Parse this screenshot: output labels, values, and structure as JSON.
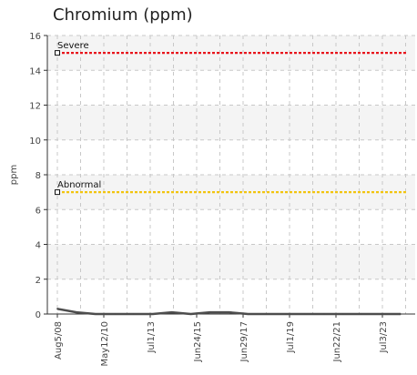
{
  "chart_data": {
    "type": "line",
    "title": "Chromium (ppm)",
    "ylabel": "ppm",
    "xlabel": "",
    "ylim": [
      0,
      16
    ],
    "yticks": [
      0,
      2,
      4,
      6,
      8,
      10,
      12,
      14,
      16
    ],
    "grid": true,
    "x_tick_labels": [
      "Aug5/08",
      "May12/10",
      "Jul1/13",
      "Jun24/15",
      "Jun29/17",
      "Jul1/19",
      "Jun22/21",
      "Jul3/23"
    ],
    "series": [
      {
        "values": [
          0.3,
          0.1,
          0,
          0,
          0,
          0,
          0.1,
          0,
          0.1,
          0.1,
          0,
          0,
          0,
          0,
          0,
          0,
          0,
          0,
          0
        ]
      }
    ],
    "reference_lines": [
      {
        "label": "Severe",
        "value": 15,
        "color": "#e8141c"
      },
      {
        "label": "Abnormal",
        "value": 7,
        "color": "#f2c40f"
      }
    ],
    "colors": {
      "series": "#4d4d4d",
      "band": "#f4f4f4",
      "grid": "#c8c8c8",
      "axis": "#333333"
    }
  }
}
